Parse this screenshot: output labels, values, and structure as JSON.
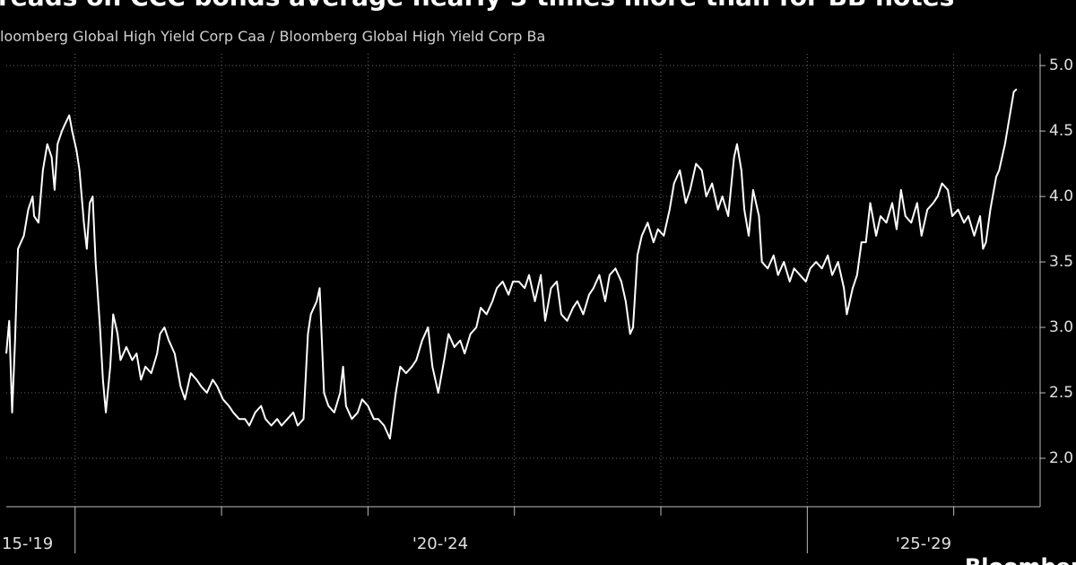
{
  "chart_data": {
    "type": "line",
    "title": "reads on CCC bonds average nearly 3 times more than for BB notes",
    "subtitle": "loomberg Global High Yield Corp Caa / Bloomberg Global High Yield Corp Ba",
    "period_labels": [
      "15-'19",
      "'20-'24",
      "'25-'29"
    ],
    "source": "Bloomberg",
    "x": [
      2019.53,
      2019.55,
      2019.57,
      2019.59,
      2019.61,
      2019.65,
      2019.68,
      2019.71,
      2019.72,
      2019.75,
      2019.78,
      2019.81,
      2019.84,
      2019.86,
      2019.88,
      2019.91,
      2019.93,
      2019.96,
      2019.98,
      2020.01,
      2020.03,
      2020.06,
      2020.08,
      2020.1,
      2020.12,
      2020.14,
      2020.17,
      2020.19,
      2020.21,
      2020.24,
      2020.26,
      2020.29,
      2020.31,
      2020.35,
      2020.39,
      2020.42,
      2020.45,
      2020.48,
      2020.52,
      2020.56,
      2020.58,
      2020.61,
      2020.64,
      2020.68,
      2020.72,
      2020.75,
      2020.79,
      2020.83,
      2020.86,
      2020.9,
      2020.94,
      2020.97,
      2021.01,
      2021.05,
      2021.08,
      2021.12,
      2021.16,
      2021.19,
      2021.23,
      2021.27,
      2021.3,
      2021.34,
      2021.38,
      2021.41,
      2021.45,
      2021.49,
      2021.52,
      2021.56,
      2021.59,
      2021.61,
      2021.65,
      2021.67,
      2021.7,
      2021.73,
      2021.77,
      2021.81,
      2021.83,
      2021.85,
      2021.89,
      2021.93,
      2021.96,
      2022.0,
      2022.04,
      2022.07,
      2022.11,
      2022.15,
      2022.19,
      2022.22,
      2022.26,
      2022.3,
      2022.33,
      2022.37,
      2022.41,
      2022.44,
      2022.48,
      2022.52,
      2022.55,
      2022.59,
      2022.63,
      2022.66,
      2022.7,
      2022.74,
      2022.77,
      2022.81,
      2022.85,
      2022.88,
      2022.92,
      2022.96,
      2022.99,
      2023.03,
      2023.07,
      2023.1,
      2023.14,
      2023.18,
      2023.21,
      2023.25,
      2023.29,
      2023.32,
      2023.36,
      2023.4,
      2023.43,
      2023.47,
      2023.51,
      2023.54,
      2023.58,
      2023.62,
      2023.65,
      2023.69,
      2023.73,
      2023.76,
      2023.79,
      2023.81,
      2023.84,
      2023.87,
      2023.91,
      2023.95,
      2023.98,
      2024.02,
      2024.06,
      2024.09,
      2024.13,
      2024.17,
      2024.2,
      2024.24,
      2024.28,
      2024.31,
      2024.35,
      2024.39,
      2024.42,
      2024.46,
      2024.5,
      2024.52,
      2024.55,
      2024.57,
      2024.6,
      2024.63,
      2024.67,
      2024.69,
      2024.73,
      2024.77,
      2024.8,
      2024.84,
      2024.88,
      2024.91,
      2024.95,
      2024.99,
      2025.02,
      2025.06,
      2025.1,
      2025.14,
      2025.17,
      2025.21,
      2025.25,
      2025.27,
      2025.31,
      2025.34,
      2025.37,
      2025.4,
      2025.43,
      2025.47,
      2025.5,
      2025.54,
      2025.58,
      2025.61,
      2025.64,
      2025.67,
      2025.71,
      2025.75,
      2025.78,
      2025.82,
      2025.86,
      2025.89,
      2025.92,
      2025.96,
      2025.99,
      2026.03,
      2026.07,
      2026.1,
      2026.14,
      2026.18,
      2026.2,
      2026.22,
      2026.25,
      2026.29,
      2026.31,
      2026.35,
      2026.38,
      2026.41,
      2026.43
    ],
    "series": [
      {
        "name": "Caa / Ba",
        "color": "#ffffff",
        "values": [
          2.8,
          3.05,
          2.35,
          2.9,
          3.6,
          3.7,
          3.9,
          4.0,
          3.85,
          3.8,
          4.2,
          4.4,
          4.3,
          4.05,
          4.4,
          4.5,
          4.55,
          4.62,
          4.5,
          4.35,
          4.2,
          3.8,
          3.6,
          3.95,
          4.0,
          3.5,
          3.0,
          2.6,
          2.35,
          2.7,
          3.1,
          2.95,
          2.75,
          2.85,
          2.75,
          2.8,
          2.6,
          2.7,
          2.65,
          2.8,
          2.95,
          3.0,
          2.9,
          2.8,
          2.55,
          2.45,
          2.65,
          2.6,
          2.55,
          2.5,
          2.6,
          2.55,
          2.45,
          2.4,
          2.35,
          2.3,
          2.3,
          2.25,
          2.35,
          2.4,
          2.3,
          2.25,
          2.3,
          2.25,
          2.3,
          2.35,
          2.25,
          2.3,
          2.95,
          3.1,
          3.2,
          3.3,
          2.5,
          2.4,
          2.35,
          2.5,
          2.7,
          2.4,
          2.3,
          2.35,
          2.45,
          2.4,
          2.3,
          2.3,
          2.25,
          2.15,
          2.5,
          2.7,
          2.65,
          2.7,
          2.75,
          2.9,
          3.0,
          2.7,
          2.5,
          2.75,
          2.95,
          2.85,
          2.9,
          2.8,
          2.95,
          3.0,
          3.15,
          3.1,
          3.2,
          3.3,
          3.35,
          3.25,
          3.35,
          3.35,
          3.3,
          3.4,
          3.2,
          3.4,
          3.05,
          3.3,
          3.35,
          3.1,
          3.05,
          3.15,
          3.2,
          3.1,
          3.25,
          3.3,
          3.4,
          3.2,
          3.4,
          3.45,
          3.35,
          3.2,
          2.95,
          3.0,
          3.55,
          3.7,
          3.8,
          3.65,
          3.75,
          3.7,
          3.9,
          4.1,
          4.2,
          3.95,
          4.05,
          4.25,
          4.2,
          4.0,
          4.1,
          3.9,
          4.0,
          3.85,
          4.3,
          4.4,
          4.2,
          3.9,
          3.7,
          4.05,
          3.85,
          3.5,
          3.45,
          3.55,
          3.4,
          3.5,
          3.35,
          3.45,
          3.4,
          3.35,
          3.45,
          3.5,
          3.45,
          3.55,
          3.4,
          3.5,
          3.3,
          3.1,
          3.3,
          3.4,
          3.65,
          3.65,
          3.95,
          3.7,
          3.85,
          3.8,
          3.95,
          3.75,
          4.05,
          3.85,
          3.8,
          3.95,
          3.7,
          3.9,
          3.95,
          4.0,
          4.1,
          4.05,
          3.85,
          3.9,
          3.8,
          3.85,
          3.7,
          3.85,
          3.6,
          3.65,
          3.9,
          4.15,
          4.2,
          4.4,
          4.6,
          4.8,
          4.82
        ]
      }
    ],
    "xlim": [
      2019.53,
      2026.59
    ],
    "xticks": [
      2020,
      2021,
      2022,
      2023,
      2024,
      2025,
      2026
    ],
    "ylim": [
      1.63,
      5.09
    ],
    "yticks": [
      {
        "value": 2,
        "label": "2.0"
      },
      {
        "value": 2.5,
        "label": "2.5"
      },
      {
        "value": 3,
        "label": "3.0"
      },
      {
        "value": 3.5,
        "label": "3.5"
      },
      {
        "value": 4,
        "label": "4.0"
      },
      {
        "value": 4.5,
        "label": "4.5"
      },
      {
        "value": 5,
        "label": "5.0"
      }
    ],
    "grid": true
  }
}
